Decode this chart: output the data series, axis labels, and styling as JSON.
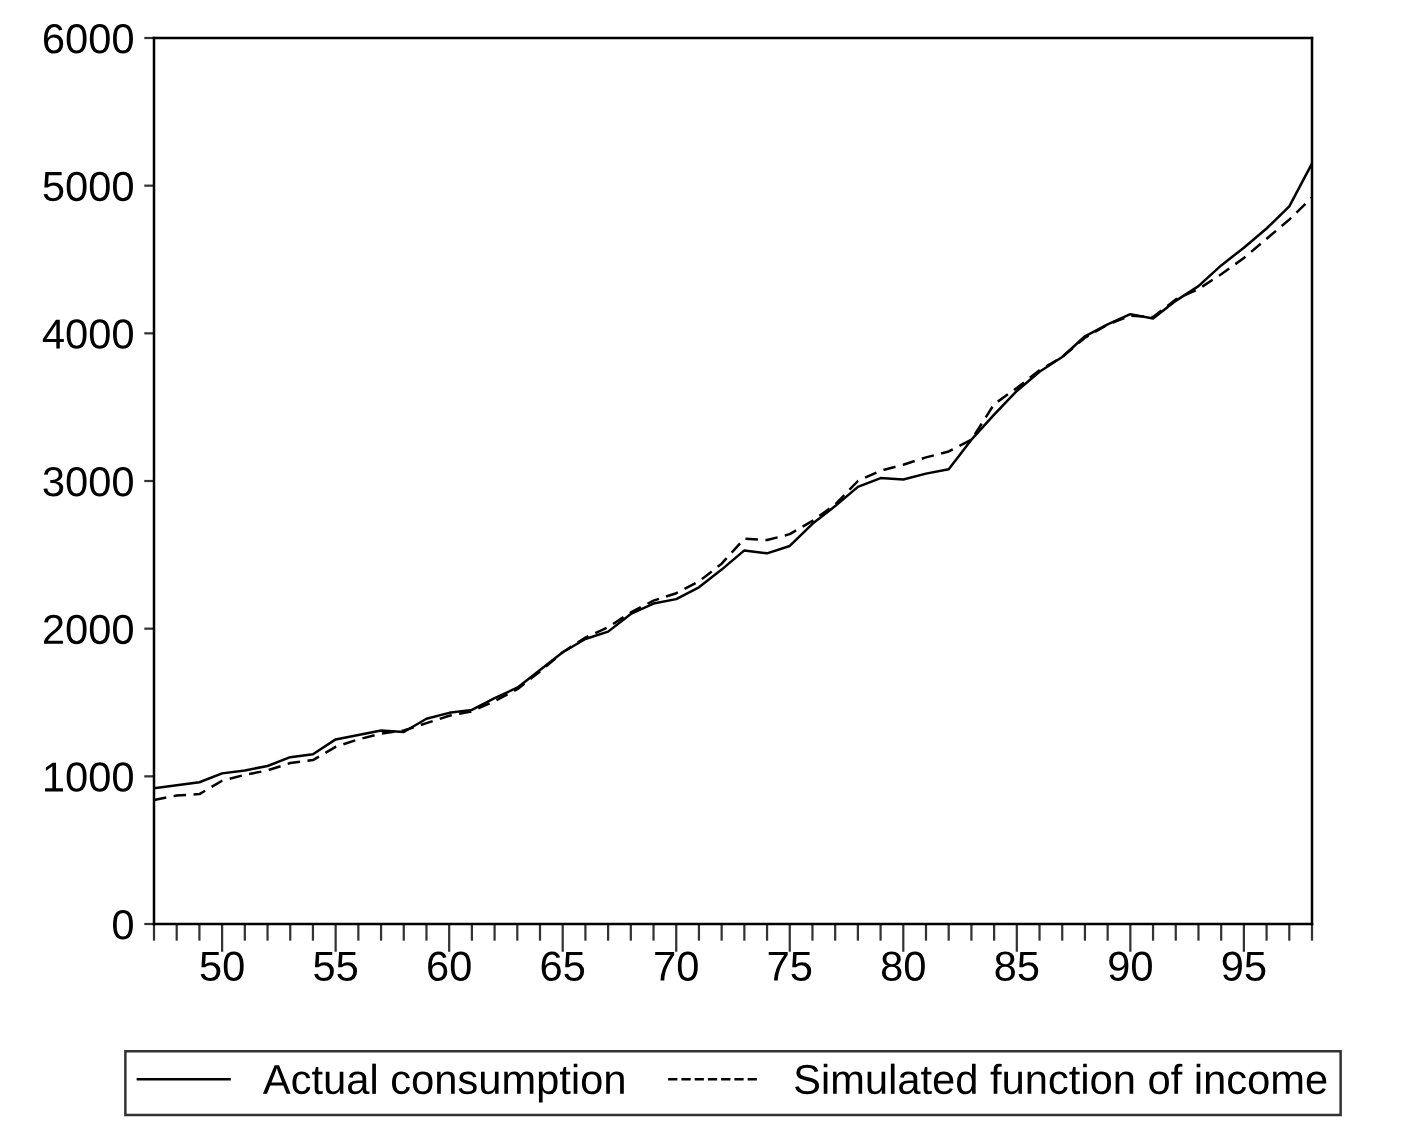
{
  "chart_data": {
    "type": "line",
    "x": [
      47,
      48,
      49,
      50,
      51,
      52,
      53,
      54,
      55,
      56,
      57,
      58,
      59,
      60,
      61,
      62,
      63,
      64,
      65,
      66,
      67,
      68,
      69,
      70,
      71,
      72,
      73,
      74,
      75,
      76,
      77,
      78,
      79,
      80,
      81,
      82,
      83,
      84,
      85,
      86,
      87,
      88,
      89,
      90,
      91,
      92,
      93,
      94,
      95,
      96,
      97,
      98
    ],
    "series": [
      {
        "name": "Actual consumption",
        "color": "#000000",
        "line_style": "solid",
        "values": [
          920,
          940,
          960,
          1020,
          1040,
          1070,
          1130,
          1150,
          1250,
          1280,
          1310,
          1300,
          1390,
          1430,
          1450,
          1530,
          1600,
          1720,
          1840,
          1930,
          1980,
          2100,
          2170,
          2200,
          2280,
          2400,
          2530,
          2510,
          2560,
          2710,
          2830,
          2960,
          3020,
          3010,
          3050,
          3080,
          3280,
          3450,
          3610,
          3740,
          3840,
          3980,
          4060,
          4130,
          4100,
          4220,
          4320,
          4460,
          4580,
          4710,
          4860,
          5150
        ]
      },
      {
        "name": "Simulated function of income",
        "color": "#000000",
        "line_style": "dashed",
        "values": [
          840,
          870,
          880,
          970,
          1010,
          1040,
          1090,
          1110,
          1200,
          1250,
          1290,
          1310,
          1360,
          1410,
          1440,
          1510,
          1590,
          1710,
          1840,
          1940,
          2010,
          2110,
          2190,
          2240,
          2320,
          2440,
          2610,
          2600,
          2640,
          2730,
          2840,
          3000,
          3070,
          3110,
          3160,
          3200,
          3280,
          3520,
          3630,
          3750,
          3840,
          3970,
          4060,
          4120,
          4110,
          4230,
          4300,
          4400,
          4510,
          4640,
          4770,
          4920
        ]
      }
    ],
    "xlim": [
      47,
      98
    ],
    "xticks": [
      {
        "value": 47,
        "label": null
      },
      {
        "value": 48,
        "label": null
      },
      {
        "value": 49,
        "label": null
      },
      50,
      {
        "value": 51,
        "label": null
      },
      {
        "value": 52,
        "label": null
      },
      {
        "value": 53,
        "label": null
      },
      {
        "value": 54,
        "label": null
      },
      55,
      {
        "value": 56,
        "label": null
      },
      {
        "value": 57,
        "label": null
      },
      {
        "value": 58,
        "label": null
      },
      {
        "value": 59,
        "label": null
      },
      60,
      {
        "value": 61,
        "label": null
      },
      {
        "value": 62,
        "label": null
      },
      {
        "value": 63,
        "label": null
      },
      {
        "value": 64,
        "label": null
      },
      65,
      {
        "value": 66,
        "label": null
      },
      {
        "value": 67,
        "label": null
      },
      {
        "value": 68,
        "label": null
      },
      {
        "value": 69,
        "label": null
      },
      70,
      {
        "value": 71,
        "label": null
      },
      {
        "value": 72,
        "label": null
      },
      {
        "value": 73,
        "label": null
      },
      {
        "value": 74,
        "label": null
      },
      75,
      {
        "value": 76,
        "label": null
      },
      {
        "value": 77,
        "label": null
      },
      {
        "value": 78,
        "label": null
      },
      {
        "value": 79,
        "label": null
      },
      80,
      {
        "value": 81,
        "label": null
      },
      {
        "value": 82,
        "label": null
      },
      {
        "value": 83,
        "label": null
      },
      {
        "value": 84,
        "label": null
      },
      85,
      {
        "value": 86,
        "label": null
      },
      {
        "value": 87,
        "label": null
      },
      {
        "value": 88,
        "label": null
      },
      {
        "value": 89,
        "label": null
      },
      90,
      {
        "value": 91,
        "label": null
      },
      {
        "value": 92,
        "label": null
      },
      {
        "value": 93,
        "label": null
      },
      {
        "value": 94,
        "label": null
      },
      95,
      {
        "value": 96,
        "label": null
      },
      {
        "value": 97,
        "label": null
      },
      {
        "value": 98,
        "label": null
      }
    ],
    "ylim": [
      0,
      6000
    ],
    "yticks": [
      0,
      1000,
      2000,
      3000,
      4000,
      5000,
      6000
    ],
    "grid": false,
    "legend": "bottom"
  }
}
